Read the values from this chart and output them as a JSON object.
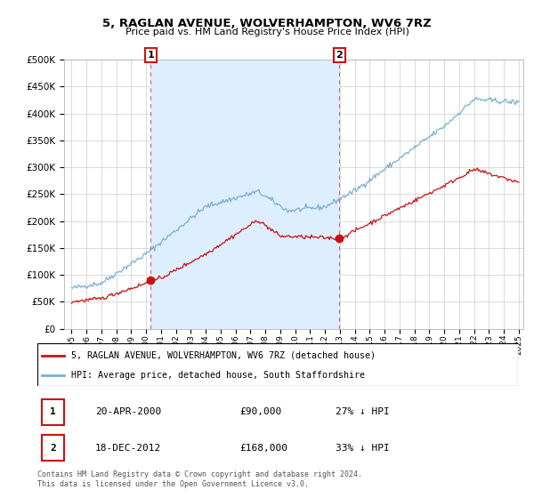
{
  "title": "5, RAGLAN AVENUE, WOLVERHAMPTON, WV6 7RZ",
  "subtitle": "Price paid vs. HM Land Registry's House Price Index (HPI)",
  "hpi_label": "HPI: Average price, detached house, South Staffordshire",
  "property_label": "5, RAGLAN AVENUE, WOLVERHAMPTON, WV6 7RZ (detached house)",
  "annotation1_date": "20-APR-2000",
  "annotation1_price": "£90,000",
  "annotation1_hpi": "27% ↓ HPI",
  "annotation2_date": "18-DEC-2012",
  "annotation2_price": "£168,000",
  "annotation2_hpi": "33% ↓ HPI",
  "footer": "Contains HM Land Registry data © Crown copyright and database right 2024.\nThis data is licensed under the Open Government Licence v3.0.",
  "hpi_color": "#7aafd4",
  "property_color": "#cc1111",
  "dashed_line_color": "#cc6666",
  "fill_color": "#ddeeff",
  "background_color": "#ffffff",
  "grid_color": "#cccccc",
  "ylim": [
    0,
    500000
  ],
  "yticks": [
    0,
    50000,
    100000,
    150000,
    200000,
    250000,
    300000,
    350000,
    400000,
    450000,
    500000
  ],
  "year_start": 1995,
  "year_end": 2025,
  "sale1_year": 2000.3,
  "sale1_price": 90000,
  "sale2_year": 2012.96,
  "sale2_price": 168000
}
